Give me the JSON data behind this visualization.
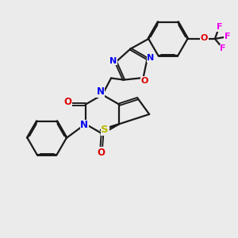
{
  "background_color": "#ebebeb",
  "bond_color": "#1a1a1a",
  "bond_width": 1.6,
  "atom_colors": {
    "N": "#0000ee",
    "O": "#dd0000",
    "S": "#bbbb00",
    "F": "#ee00ee",
    "C": "#1a1a1a"
  },
  "font_size": 8.5
}
